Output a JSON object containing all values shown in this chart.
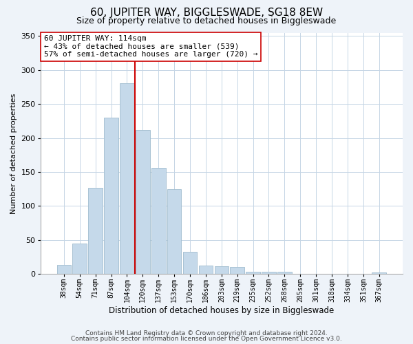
{
  "title": "60, JUPITER WAY, BIGGLESWADE, SG18 8EW",
  "subtitle": "Size of property relative to detached houses in Biggleswade",
  "xlabel": "Distribution of detached houses by size in Biggleswade",
  "ylabel": "Number of detached properties",
  "bar_labels": [
    "38sqm",
    "54sqm",
    "71sqm",
    "87sqm",
    "104sqm",
    "120sqm",
    "137sqm",
    "153sqm",
    "170sqm",
    "186sqm",
    "203sqm",
    "219sqm",
    "235sqm",
    "252sqm",
    "268sqm",
    "285sqm",
    "301sqm",
    "318sqm",
    "334sqm",
    "351sqm",
    "367sqm"
  ],
  "bar_values": [
    13,
    45,
    127,
    230,
    281,
    212,
    156,
    125,
    33,
    12,
    11,
    10,
    3,
    3,
    3,
    0,
    0,
    0,
    0,
    0,
    2
  ],
  "bar_color": "#c5d9ea",
  "bar_edge_color": "#a0bcce",
  "vline_x": 4.5,
  "vline_color": "#cc0000",
  "annotation_text": "60 JUPITER WAY: 114sqm\n← 43% of detached houses are smaller (539)\n57% of semi-detached houses are larger (720) →",
  "ylim": [
    0,
    355
  ],
  "yticks": [
    0,
    50,
    100,
    150,
    200,
    250,
    300,
    350
  ],
  "footnote1": "Contains HM Land Registry data © Crown copyright and database right 2024.",
  "footnote2": "Contains public sector information licensed under the Open Government Licence v3.0.",
  "bg_color": "#eef3f9",
  "plot_bg_color": "#ffffff",
  "title_fontsize": 11,
  "subtitle_fontsize": 9,
  "ylabel_fontsize": 8,
  "xlabel_fontsize": 8.5,
  "annot_fontsize": 8,
  "tick_fontsize": 7,
  "footnote_fontsize": 6.5
}
